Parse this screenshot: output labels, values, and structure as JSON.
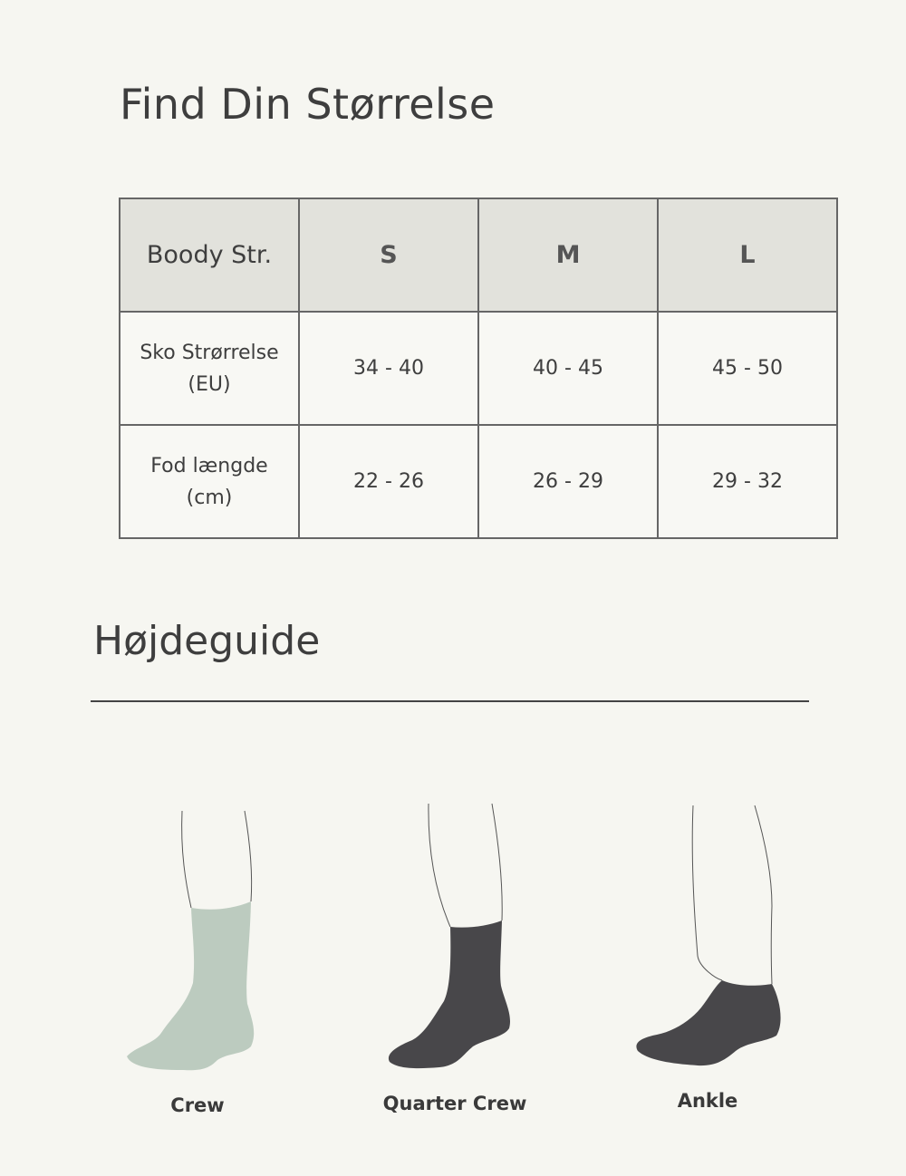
{
  "size_guide": {
    "title": "Find Din Størrelse",
    "header": {
      "label": "Boody Str.",
      "sizes": [
        "S",
        "M",
        "L"
      ]
    },
    "rows": [
      {
        "label": "Sko Strørrelse\n(EU)",
        "values": [
          "34 - 40",
          "40 - 45",
          "45 - 50"
        ]
      },
      {
        "label": "Fod længde\n(cm)",
        "values": [
          "22 - 26",
          "26 - 29",
          "29 - 32"
        ]
      }
    ]
  },
  "height_guide": {
    "title": "Højdeguide",
    "styles": [
      {
        "name": "Crew",
        "color": "#bccbbf"
      },
      {
        "name": "Quarter Crew",
        "color": "#48474a"
      },
      {
        "name": "Ankle",
        "color": "#48474a"
      }
    ]
  }
}
